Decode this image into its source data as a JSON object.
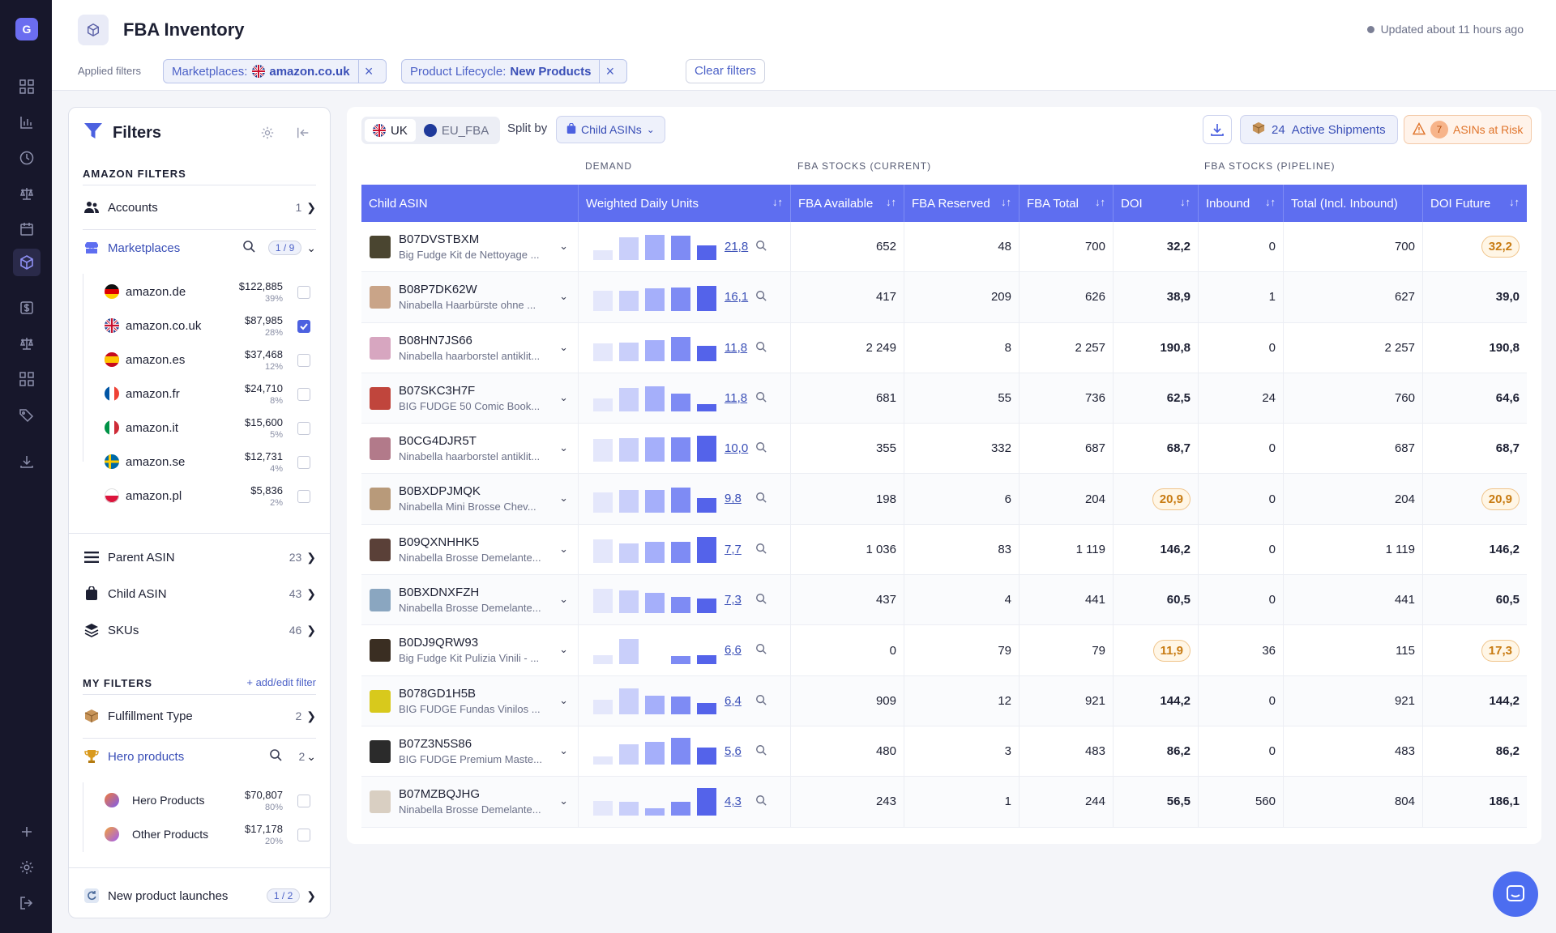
{
  "app": {
    "logo": "G",
    "title": "FBA Inventory",
    "updated": "Updated about 11 hours ago"
  },
  "filters_bar": {
    "applied_label": "Applied filters",
    "chips": [
      {
        "key": "Marketplaces:",
        "value": "amazon.co.uk"
      },
      {
        "key": "Product Lifecycle:",
        "value": "New Products"
      }
    ],
    "clear": "Clear filters"
  },
  "panel": {
    "title": "Filters",
    "amazon_section": "AMAZON FILTERS",
    "accounts": {
      "label": "Accounts",
      "count": "1"
    },
    "marketplaces": {
      "label": "Marketplaces",
      "count": "1 / 9"
    },
    "markets": [
      {
        "name": "amazon.de",
        "value": "$122,885",
        "pct": "39%",
        "checked": false
      },
      {
        "name": "amazon.co.uk",
        "value": "$87,985",
        "pct": "28%",
        "checked": true
      },
      {
        "name": "amazon.es",
        "value": "$37,468",
        "pct": "12%",
        "checked": false
      },
      {
        "name": "amazon.fr",
        "value": "$24,710",
        "pct": "8%",
        "checked": false
      },
      {
        "name": "amazon.it",
        "value": "$15,600",
        "pct": "5%",
        "checked": false
      },
      {
        "name": "amazon.se",
        "value": "$12,731",
        "pct": "4%",
        "checked": false
      },
      {
        "name": "amazon.pl",
        "value": "$5,836",
        "pct": "2%",
        "checked": false
      }
    ],
    "parent_asin": {
      "label": "Parent ASIN",
      "count": "23"
    },
    "child_asin": {
      "label": "Child ASIN",
      "count": "43"
    },
    "skus": {
      "label": "SKUs",
      "count": "46"
    },
    "my_section": "MY FILTERS",
    "add_edit": "+ add/edit filter",
    "fulfillment": {
      "label": "Fulfillment Type",
      "count": "2"
    },
    "hero": {
      "label": "Hero products",
      "count": "2"
    },
    "hero_items": [
      {
        "name": "Hero Products",
        "value": "$70,807",
        "pct": "80%"
      },
      {
        "name": "Other Products",
        "value": "$17,178",
        "pct": "20%"
      }
    ],
    "launches": {
      "label": "New product launches",
      "count": "1 / 2"
    }
  },
  "toolbar": {
    "tabs": [
      "UK",
      "EU_FBA"
    ],
    "split_by": "Split by",
    "split_value": "Child ASINs",
    "shipments_count": "24",
    "shipments_label": "Active Shipments",
    "risk_count": "7",
    "risk_label": "ASINs at Risk"
  },
  "groups": {
    "demand": "DEMAND",
    "current": "FBA STOCKS (CURRENT)",
    "pipeline": "FBA STOCKS (PIPELINE)"
  },
  "columns": [
    "Child ASIN",
    "Weighted Daily Units",
    "FBA Available",
    "FBA Reserved",
    "FBA Total",
    "DOI",
    "Inbound",
    "Total (Incl. Inbound)",
    "DOI Future"
  ],
  "rows": [
    {
      "asin": "B07DVSTBXM",
      "name": "Big Fudge Kit de Nettoyage ...",
      "bars": [
        0.3,
        0.7,
        0.78,
        0.76,
        0.46
      ],
      "wdu": "21,8",
      "avail": "652",
      "reserved": "48",
      "total": "700",
      "doi": "32,2",
      "doi_risk": false,
      "inbound": "0",
      "total_in": "700",
      "doi_future": "32,2",
      "future_risk": true,
      "thumb": "#4a4530"
    },
    {
      "asin": "B08P7DK62W",
      "name": "Ninabella Haarbürste ohne ...",
      "bars": [
        0.62,
        0.62,
        0.7,
        0.72,
        0.78
      ],
      "wdu": "16,1",
      "avail": "417",
      "reserved": "209",
      "total": "626",
      "doi": "38,9",
      "doi_risk": false,
      "inbound": "1",
      "total_in": "627",
      "doi_future": "39,0",
      "future_risk": false,
      "thumb": "#c9a488"
    },
    {
      "asin": "B08HN7JS66",
      "name": "Ninabella haarborstel antiklit...",
      "bars": [
        0.55,
        0.58,
        0.66,
        0.74,
        0.48
      ],
      "wdu": "11,8",
      "avail": "2 249",
      "reserved": "8",
      "total": "2 257",
      "doi": "190,8",
      "doi_risk": false,
      "inbound": "0",
      "total_in": "2 257",
      "doi_future": "190,8",
      "future_risk": false,
      "thumb": "#d7a6c0"
    },
    {
      "asin": "B07SKC3H7F",
      "name": "BIG FUDGE 50 Comic Book...",
      "bars": [
        0.4,
        0.72,
        0.78,
        0.56,
        0.22
      ],
      "wdu": "11,8",
      "avail": "681",
      "reserved": "55",
      "total": "736",
      "doi": "62,5",
      "doi_risk": false,
      "inbound": "24",
      "total_in": "760",
      "doi_future": "64,6",
      "future_risk": false,
      "thumb": "#c0453c"
    },
    {
      "asin": "B0CG4DJR5T",
      "name": "Ninabella haarborstel antiklit...",
      "bars": [
        0.7,
        0.72,
        0.74,
        0.76,
        0.8
      ],
      "wdu": "10,0",
      "avail": "355",
      "reserved": "332",
      "total": "687",
      "doi": "68,7",
      "doi_risk": false,
      "inbound": "0",
      "total_in": "687",
      "doi_future": "68,7",
      "future_risk": false,
      "thumb": "#b27a8a"
    },
    {
      "asin": "B0BXDPJMQK",
      "name": "Ninabella Mini Brosse Chev...",
      "bars": [
        0.62,
        0.7,
        0.7,
        0.78,
        0.46
      ],
      "wdu": "9,8",
      "avail": "198",
      "reserved": "6",
      "total": "204",
      "doi": "20,9",
      "doi_risk": true,
      "inbound": "0",
      "total_in": "204",
      "doi_future": "20,9",
      "future_risk": true,
      "thumb": "#b89a7a"
    },
    {
      "asin": "B09QXNHHK5",
      "name": "Ninabella Brosse Demelante...",
      "bars": [
        0.72,
        0.6,
        0.64,
        0.66,
        0.8
      ],
      "wdu": "7,7",
      "avail": "1 036",
      "reserved": "83",
      "total": "1 119",
      "doi": "146,2",
      "doi_risk": false,
      "inbound": "0",
      "total_in": "1 119",
      "doi_future": "146,2",
      "future_risk": false,
      "thumb": "#5a4038"
    },
    {
      "asin": "B0BXDNXFZH",
      "name": "Ninabella Brosse Demelante...",
      "bars": [
        0.76,
        0.7,
        0.62,
        0.5,
        0.46
      ],
      "wdu": "7,3",
      "avail": "437",
      "reserved": "4",
      "total": "441",
      "doi": "60,5",
      "doi_risk": false,
      "inbound": "0",
      "total_in": "441",
      "doi_future": "60,5",
      "future_risk": false,
      "thumb": "#8aa6c0"
    },
    {
      "asin": "B0DJ9QRW93",
      "name": "Big Fudge Kit Pulizia Vinili - ...",
      "bars": [
        0.28,
        0.78,
        0,
        0.26,
        0.28
      ],
      "wdu": "6,6",
      "avail": "0",
      "reserved": "79",
      "total": "79",
      "doi": "11,9",
      "doi_risk": true,
      "inbound": "36",
      "total_in": "115",
      "doi_future": "17,3",
      "future_risk": true,
      "thumb": "#3a2e22"
    },
    {
      "asin": "B078GD1H5B",
      "name": "BIG FUDGE Fundas Vinilos ...",
      "bars": [
        0.46,
        0.8,
        0.58,
        0.54,
        0.34
      ],
      "wdu": "6,4",
      "avail": "909",
      "reserved": "12",
      "total": "921",
      "doi": "144,2",
      "doi_risk": false,
      "inbound": "0",
      "total_in": "921",
      "doi_future": "144,2",
      "future_risk": false,
      "thumb": "#d8c91c"
    },
    {
      "asin": "B07Z3N5S86",
      "name": "BIG FUDGE Premium Maste...",
      "bars": [
        0.24,
        0.62,
        0.7,
        0.82,
        0.52
      ],
      "wdu": "5,6",
      "avail": "480",
      "reserved": "3",
      "total": "483",
      "doi": "86,2",
      "doi_risk": false,
      "inbound": "0",
      "total_in": "483",
      "doi_future": "86,2",
      "future_risk": false,
      "thumb": "#2b2b2b"
    },
    {
      "asin": "B07MZBQJHG",
      "name": "Ninabella Brosse Demelante...",
      "bars": [
        0.44,
        0.42,
        0.22,
        0.42,
        0.84
      ],
      "wdu": "4,3",
      "avail": "243",
      "reserved": "1",
      "total": "244",
      "doi": "56,5",
      "doi_risk": false,
      "inbound": "560",
      "total_in": "804",
      "doi_future": "186,1",
      "future_risk": false,
      "thumb": "#d9cfc2"
    }
  ]
}
